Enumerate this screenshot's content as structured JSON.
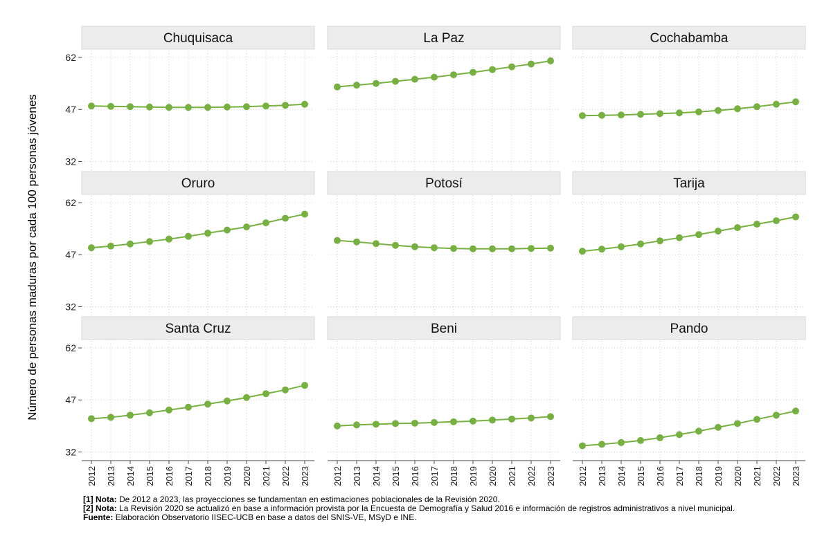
{
  "chart_data": {
    "type": "line",
    "ylabel": "Número de personas maduras por cada 100 personas jóvenes",
    "x": [
      "2012",
      "2013",
      "2014",
      "2015",
      "2016",
      "2017",
      "2018",
      "2019",
      "2020",
      "2021",
      "2022",
      "2023"
    ],
    "ylim": [
      29.5,
      64
    ],
    "yticks": [
      32,
      47,
      62
    ],
    "grid": true,
    "series_color": "#76b041",
    "panels": [
      {
        "name": "Chuquisaca",
        "values": [
          48.0,
          47.9,
          47.8,
          47.7,
          47.6,
          47.6,
          47.6,
          47.7,
          47.8,
          48.0,
          48.2,
          48.5
        ]
      },
      {
        "name": "La Paz",
        "values": [
          53.5,
          54.0,
          54.5,
          55.1,
          55.7,
          56.3,
          57.0,
          57.7,
          58.5,
          59.3,
          60.1,
          61.0
        ]
      },
      {
        "name": "Cochabamba",
        "values": [
          45.2,
          45.3,
          45.4,
          45.6,
          45.8,
          46.0,
          46.3,
          46.7,
          47.2,
          47.8,
          48.5,
          49.2
        ]
      },
      {
        "name": "Oruro",
        "values": [
          49.0,
          49.5,
          50.1,
          50.8,
          51.5,
          52.3,
          53.2,
          54.1,
          55.0,
          56.2,
          57.5,
          58.7
        ]
      },
      {
        "name": "Potosí",
        "values": [
          51.1,
          50.7,
          50.2,
          49.7,
          49.3,
          49.0,
          48.8,
          48.7,
          48.7,
          48.7,
          48.8,
          48.9
        ]
      },
      {
        "name": "Tarija",
        "values": [
          48.0,
          48.6,
          49.3,
          50.1,
          51.0,
          51.9,
          52.8,
          53.8,
          54.8,
          55.8,
          56.8,
          57.9
        ]
      },
      {
        "name": "Santa Cruz",
        "values": [
          41.6,
          42.0,
          42.6,
          43.3,
          44.1,
          44.9,
          45.8,
          46.7,
          47.7,
          48.8,
          49.9,
          51.2
        ]
      },
      {
        "name": "Beni",
        "values": [
          39.5,
          39.8,
          40.0,
          40.2,
          40.3,
          40.5,
          40.7,
          40.9,
          41.2,
          41.5,
          41.8,
          42.2
        ]
      },
      {
        "name": "Pando",
        "values": [
          33.8,
          34.2,
          34.7,
          35.3,
          36.1,
          37.0,
          38.0,
          39.1,
          40.2,
          41.4,
          42.6,
          43.8
        ]
      }
    ]
  },
  "notes": [
    {
      "label": "[1] Nota:",
      "text": "De 2012 a 2023, las proyecciones se fundamentan en estimaciones poblacionales de la Revisión 2020."
    },
    {
      "label": "[2] Nota:",
      "text": "La Revisión 2020 se actualizó en base a información provista por la Encuesta de Demografía y Salud 2016 e información de registros administrativos a nivel municipal."
    },
    {
      "label": "Fuente:",
      "text": "Elaboración Observatorio IISEC-UCB en base a datos del SNIS-VE, MSyD e INE."
    }
  ]
}
